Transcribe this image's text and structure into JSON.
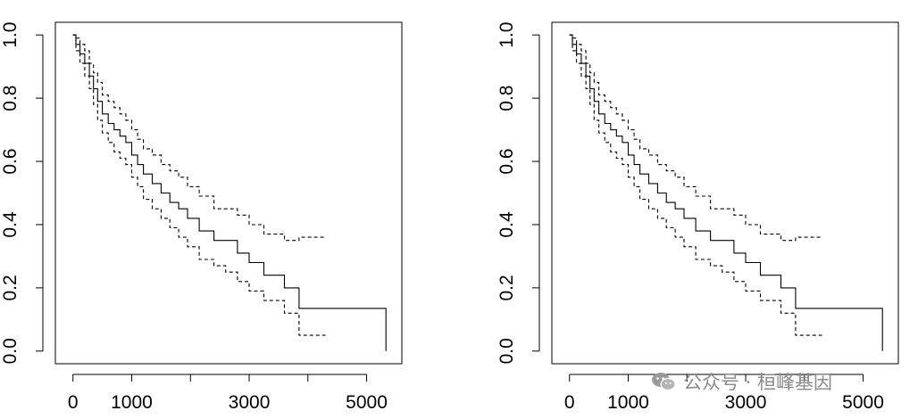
{
  "watermark": {
    "text": "公众号 · 桓峰基因",
    "icon": "wechat-icon"
  },
  "chart_data": [
    {
      "type": "line",
      "title": "",
      "xlabel": "",
      "ylabel": "",
      "xlim": [
        -300,
        5600
      ],
      "ylim": [
        -0.04,
        1.04
      ],
      "xticks": [
        0,
        1000,
        2000,
        3000,
        4000,
        5000
      ],
      "xtick_labels": [
        "0",
        "1000",
        "",
        "3000",
        "",
        "5000"
      ],
      "yticks": [
        0.0,
        0.2,
        0.4,
        0.6,
        0.8,
        1.0
      ],
      "ytick_labels": [
        "0.0",
        "0.2",
        "0.4",
        "0.6",
        "0.8",
        "1.0"
      ],
      "grid": false,
      "series": [
        {
          "style": "solid",
          "x": [
            0,
            50,
            120,
            200,
            280,
            350,
            420,
            500,
            600,
            700,
            800,
            900,
            1000,
            1100,
            1200,
            1350,
            1500,
            1650,
            1800,
            1950,
            2150,
            2400,
            2600,
            2800,
            3000,
            3250,
            3600,
            3850,
            5330,
            5330
          ],
          "y": [
            1.0,
            0.97,
            0.94,
            0.91,
            0.87,
            0.83,
            0.79,
            0.75,
            0.72,
            0.7,
            0.68,
            0.66,
            0.62,
            0.59,
            0.56,
            0.53,
            0.5,
            0.47,
            0.45,
            0.42,
            0.38,
            0.35,
            0.35,
            0.31,
            0.28,
            0.24,
            0.2,
            0.135,
            0.135,
            0.0
          ]
        },
        {
          "style": "dashed",
          "x": [
            0,
            50,
            120,
            200,
            280,
            350,
            420,
            500,
            600,
            700,
            800,
            900,
            1000,
            1100,
            1200,
            1350,
            1500,
            1650,
            1800,
            1950,
            2150,
            2400,
            2600,
            2800,
            3000,
            3250,
            3600,
            3850,
            4300
          ],
          "y": [
            1.0,
            0.99,
            0.97,
            0.95,
            0.91,
            0.88,
            0.85,
            0.81,
            0.79,
            0.77,
            0.75,
            0.73,
            0.7,
            0.67,
            0.64,
            0.62,
            0.59,
            0.57,
            0.55,
            0.52,
            0.49,
            0.45,
            0.45,
            0.43,
            0.4,
            0.37,
            0.35,
            0.36,
            0.36
          ]
        },
        {
          "style": "dashed",
          "x": [
            0,
            50,
            120,
            200,
            280,
            350,
            420,
            500,
            600,
            700,
            800,
            900,
            1000,
            1100,
            1200,
            1350,
            1500,
            1650,
            1800,
            1950,
            2150,
            2400,
            2600,
            2800,
            3000,
            3250,
            3600,
            3850,
            4300
          ],
          "y": [
            1.0,
            0.95,
            0.91,
            0.87,
            0.83,
            0.78,
            0.73,
            0.69,
            0.66,
            0.63,
            0.61,
            0.59,
            0.55,
            0.52,
            0.48,
            0.45,
            0.42,
            0.39,
            0.36,
            0.33,
            0.29,
            0.27,
            0.25,
            0.22,
            0.19,
            0.16,
            0.12,
            0.05,
            0.05
          ]
        }
      ]
    },
    {
      "type": "line",
      "title": "",
      "xlabel": "",
      "ylabel": "",
      "xlim": [
        -300,
        5600
      ],
      "ylim": [
        -0.04,
        1.04
      ],
      "xticks": [
        0,
        1000,
        2000,
        3000,
        4000,
        5000
      ],
      "xtick_labels": [
        "0",
        "1000",
        "",
        "3000",
        "",
        "5000"
      ],
      "yticks": [
        0.0,
        0.2,
        0.4,
        0.6,
        0.8,
        1.0
      ],
      "ytick_labels": [
        "0.0",
        "0.2",
        "0.4",
        "0.6",
        "0.8",
        "1.0"
      ],
      "grid": false,
      "series": [
        {
          "style": "solid",
          "x": [
            0,
            50,
            120,
            200,
            280,
            350,
            420,
            500,
            600,
            700,
            800,
            900,
            1000,
            1100,
            1200,
            1350,
            1500,
            1650,
            1800,
            1950,
            2150,
            2400,
            2600,
            2800,
            3000,
            3250,
            3600,
            3850,
            5330,
            5330
          ],
          "y": [
            1.0,
            0.97,
            0.94,
            0.91,
            0.87,
            0.83,
            0.79,
            0.75,
            0.72,
            0.7,
            0.68,
            0.66,
            0.62,
            0.59,
            0.56,
            0.53,
            0.5,
            0.47,
            0.45,
            0.42,
            0.38,
            0.35,
            0.35,
            0.31,
            0.28,
            0.24,
            0.2,
            0.135,
            0.135,
            0.0
          ]
        },
        {
          "style": "dashed",
          "x": [
            0,
            50,
            120,
            200,
            280,
            350,
            420,
            500,
            600,
            700,
            800,
            900,
            1000,
            1100,
            1200,
            1350,
            1500,
            1650,
            1800,
            1950,
            2150,
            2400,
            2600,
            2800,
            3000,
            3250,
            3600,
            3850,
            4300
          ],
          "y": [
            1.0,
            0.99,
            0.97,
            0.95,
            0.91,
            0.88,
            0.85,
            0.81,
            0.79,
            0.77,
            0.75,
            0.73,
            0.7,
            0.67,
            0.64,
            0.62,
            0.59,
            0.57,
            0.55,
            0.52,
            0.49,
            0.45,
            0.45,
            0.43,
            0.4,
            0.37,
            0.35,
            0.36,
            0.36
          ]
        },
        {
          "style": "dashed",
          "x": [
            0,
            50,
            120,
            200,
            280,
            350,
            420,
            500,
            600,
            700,
            800,
            900,
            1000,
            1100,
            1200,
            1350,
            1500,
            1650,
            1800,
            1950,
            2150,
            2400,
            2600,
            2800,
            3000,
            3250,
            3600,
            3850,
            4300
          ],
          "y": [
            1.0,
            0.95,
            0.91,
            0.87,
            0.83,
            0.78,
            0.73,
            0.69,
            0.66,
            0.63,
            0.61,
            0.59,
            0.55,
            0.52,
            0.48,
            0.45,
            0.42,
            0.39,
            0.36,
            0.33,
            0.29,
            0.27,
            0.25,
            0.22,
            0.19,
            0.16,
            0.12,
            0.05,
            0.05
          ]
        }
      ]
    }
  ]
}
